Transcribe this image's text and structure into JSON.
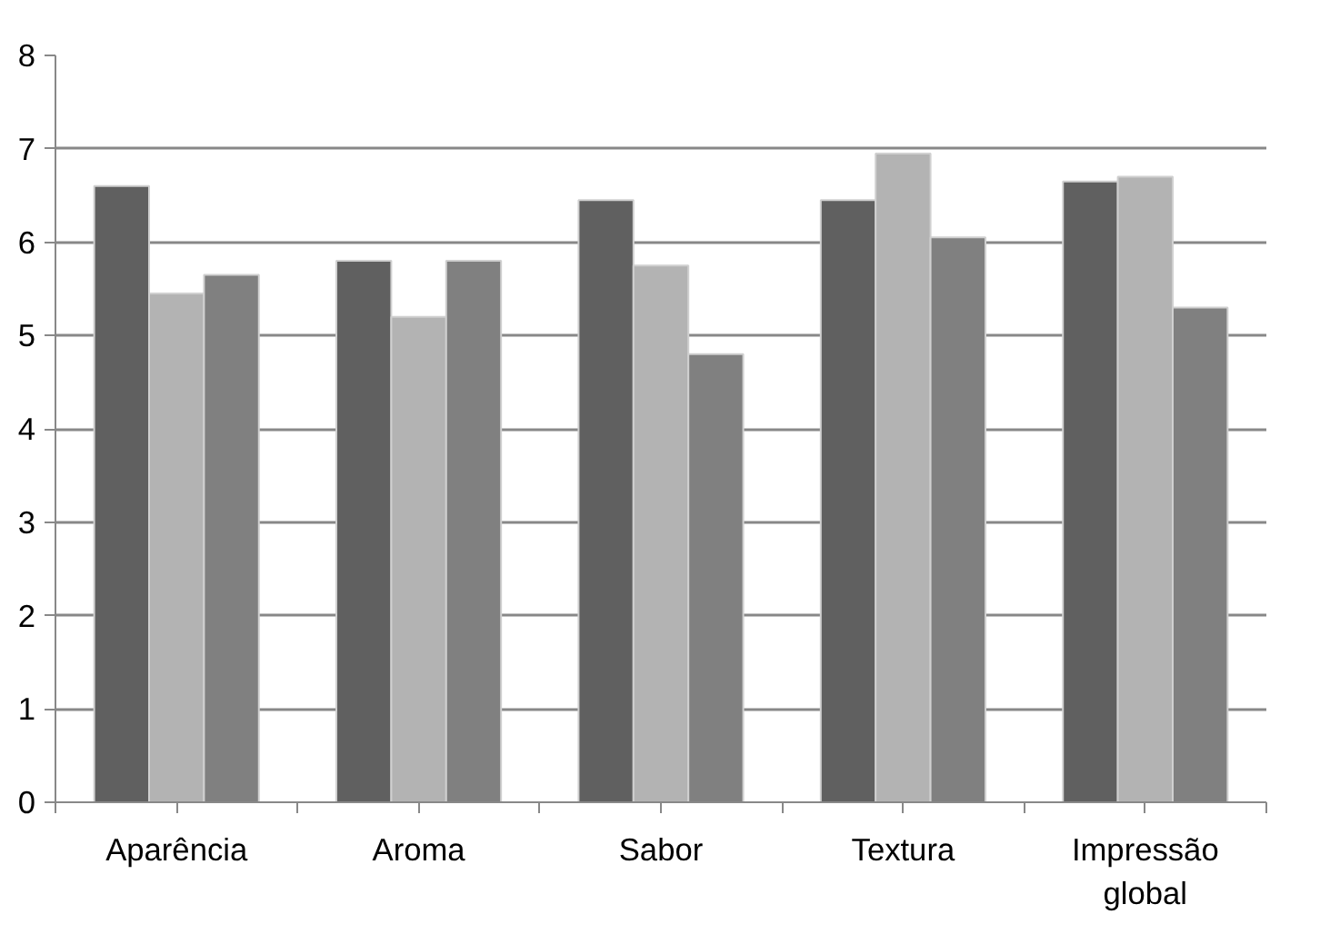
{
  "chart_data": {
    "type": "bar",
    "categories": [
      "Aparência",
      "Aroma",
      "Sabor",
      "Textura",
      "Impressão global"
    ],
    "series": [
      {
        "color": "#606060",
        "values": [
          6.6,
          5.8,
          6.45,
          6.45,
          6.65
        ]
      },
      {
        "color": "#b3b3b3",
        "values": [
          5.45,
          5.2,
          5.75,
          6.95,
          6.7
        ]
      },
      {
        "color": "#808080",
        "values": [
          5.65,
          5.8,
          4.8,
          6.05,
          5.3
        ]
      }
    ],
    "ylim": [
      0,
      8
    ],
    "yticks": [
      0,
      1,
      2,
      3,
      4,
      5,
      6,
      7,
      8
    ],
    "grid": "y"
  }
}
